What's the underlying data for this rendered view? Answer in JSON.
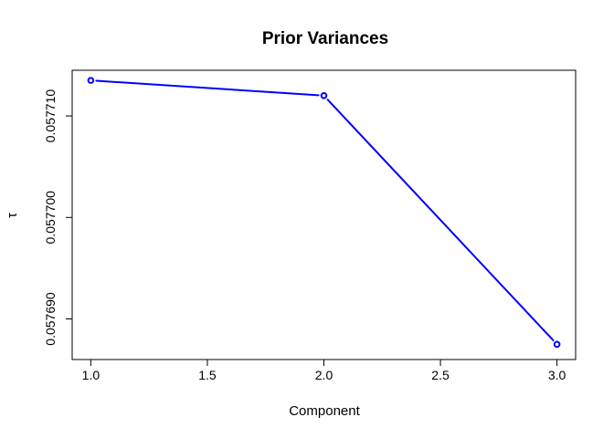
{
  "chart_data": {
    "type": "line",
    "title": "Prior Variances",
    "xlabel": "Component",
    "ylabel": "τ",
    "x": [
      1.0,
      2.0,
      3.0
    ],
    "series": [
      {
        "values": [
          0.0577135,
          0.057712,
          0.0576875
        ]
      }
    ],
    "xlim": [
      0.92,
      3.08
    ],
    "ylim": [
      0.057686,
      0.0577145
    ],
    "xticks": [
      1.0,
      1.5,
      2.0,
      2.5,
      3.0
    ],
    "xtick_labels": [
      "1.0",
      "1.5",
      "2.0",
      "2.5",
      "3.0"
    ],
    "yticks": [
      0.05769,
      0.0577,
      0.05771
    ],
    "ytick_labels": [
      "0.057690",
      "0.057700",
      "0.057710"
    ],
    "grid": false,
    "line_color": "#0000ff",
    "marker": "open-circle"
  }
}
